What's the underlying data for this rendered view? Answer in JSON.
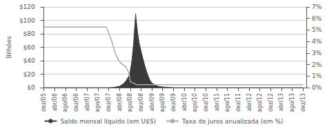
{
  "chart_data": {
    "type": "line",
    "ylabel": "Bilhões",
    "xlim": [
      -0.3,
      24.3
    ],
    "xticks": [
      {
        "value": 0,
        "label": "dez/05"
      },
      {
        "value": 1,
        "label": "abr/06"
      },
      {
        "value": 2,
        "label": "ago/06"
      },
      {
        "value": 3,
        "label": "dez/06"
      },
      {
        "value": 4,
        "label": "abr/07"
      },
      {
        "value": 5,
        "label": "ago/07"
      },
      {
        "value": 6,
        "label": "dez/07"
      },
      {
        "value": 7,
        "label": "abr/08"
      },
      {
        "value": 8,
        "label": "ago/08"
      },
      {
        "value": 9,
        "label": "dez/08"
      },
      {
        "value": 10,
        "label": "abr/09"
      },
      {
        "value": 11,
        "label": "ago/09"
      },
      {
        "value": 12,
        "label": "dez/09"
      },
      {
        "value": 13,
        "label": "abr/10"
      },
      {
        "value": 14,
        "label": "ago/10"
      },
      {
        "value": 15,
        "label": "dez/10"
      },
      {
        "value": 16,
        "label": "abr/11"
      },
      {
        "value": 17,
        "label": "ago/11"
      },
      {
        "value": 18,
        "label": "dez/11"
      },
      {
        "value": 19,
        "label": "abr/12"
      },
      {
        "value": 20,
        "label": "ago/12"
      },
      {
        "value": 21,
        "label": "dez/12"
      },
      {
        "value": 22,
        "label": "abr/13"
      },
      {
        "value": 23,
        "label": "ago/13"
      },
      {
        "value": 24,
        "label": "dez/13"
      }
    ],
    "ylim": [
      0,
      120
    ],
    "yticks": [
      {
        "value": 0,
        "label": "$0"
      },
      {
        "value": 20,
        "label": "$20"
      },
      {
        "value": 40,
        "label": "$40"
      },
      {
        "value": 60,
        "label": "$60"
      },
      {
        "value": 80,
        "label": "$80"
      },
      {
        "value": 100,
        "label": "$100"
      },
      {
        "value": 120,
        "label": "$120"
      }
    ],
    "y2lim": [
      0,
      7
    ],
    "y2ticks": [
      {
        "value": 0,
        "label": "0%"
      },
      {
        "value": 1,
        "label": "1%"
      },
      {
        "value": 2,
        "label": "2%"
      },
      {
        "value": 3,
        "label": "3%"
      },
      {
        "value": 4,
        "label": "4%"
      },
      {
        "value": 5,
        "label": "5%"
      },
      {
        "value": 6,
        "label": "6%"
      },
      {
        "value": 7,
        "label": "7%"
      }
    ],
    "grid": true,
    "legend": "bottom",
    "series": [
      {
        "name": "Saldo mensal líquido (em U$S)",
        "type": "area",
        "color": "#3a3a3a",
        "x": [
          0,
          1,
          2,
          3,
          4,
          5,
          6,
          6.5,
          7,
          7.3,
          7.6,
          7.9,
          8,
          8.15,
          8.3,
          8.5,
          8.7,
          8.85,
          9,
          9.2,
          9.4,
          9.6,
          9.8,
          10,
          10.3,
          10.6,
          11,
          11.5,
          12,
          13,
          14,
          15,
          16,
          17,
          18,
          19,
          20,
          21,
          22,
          23,
          24
        ],
        "values": [
          0,
          0,
          0,
          0,
          0,
          0,
          0,
          0.5,
          2,
          5,
          10,
          18,
          25,
          40,
          65,
          110,
          80,
          65,
          55,
          42,
          30,
          20,
          12,
          7,
          4,
          2,
          1,
          0.5,
          0,
          0,
          0,
          0,
          0,
          0,
          0,
          0,
          0,
          0,
          0,
          0,
          0
        ]
      },
      {
        "name": "Taxa de juros anualizada (em %)",
        "type": "line",
        "color": "#aaaaaa",
        "axis": "y2",
        "x": [
          0,
          1,
          2,
          3,
          4,
          5,
          5.8,
          6,
          6.3,
          6.6,
          7,
          7.3,
          7.6,
          7.9,
          8,
          8.3,
          8.6,
          9,
          10,
          11,
          12,
          13,
          14,
          15,
          16,
          17,
          18,
          19,
          20,
          21,
          22,
          23,
          24
        ],
        "values": [
          5.25,
          5.25,
          5.25,
          5.25,
          5.25,
          5.25,
          5.25,
          4.75,
          4.0,
          3.0,
          2.25,
          2.0,
          1.8,
          1.2,
          0.5,
          0.4,
          0.25,
          0.25,
          0.25,
          0.25,
          0.25,
          0.25,
          0.25,
          0.25,
          0.25,
          0.25,
          0.25,
          0.25,
          0.25,
          0.25,
          0.25,
          0.25,
          0.25
        ]
      }
    ]
  }
}
